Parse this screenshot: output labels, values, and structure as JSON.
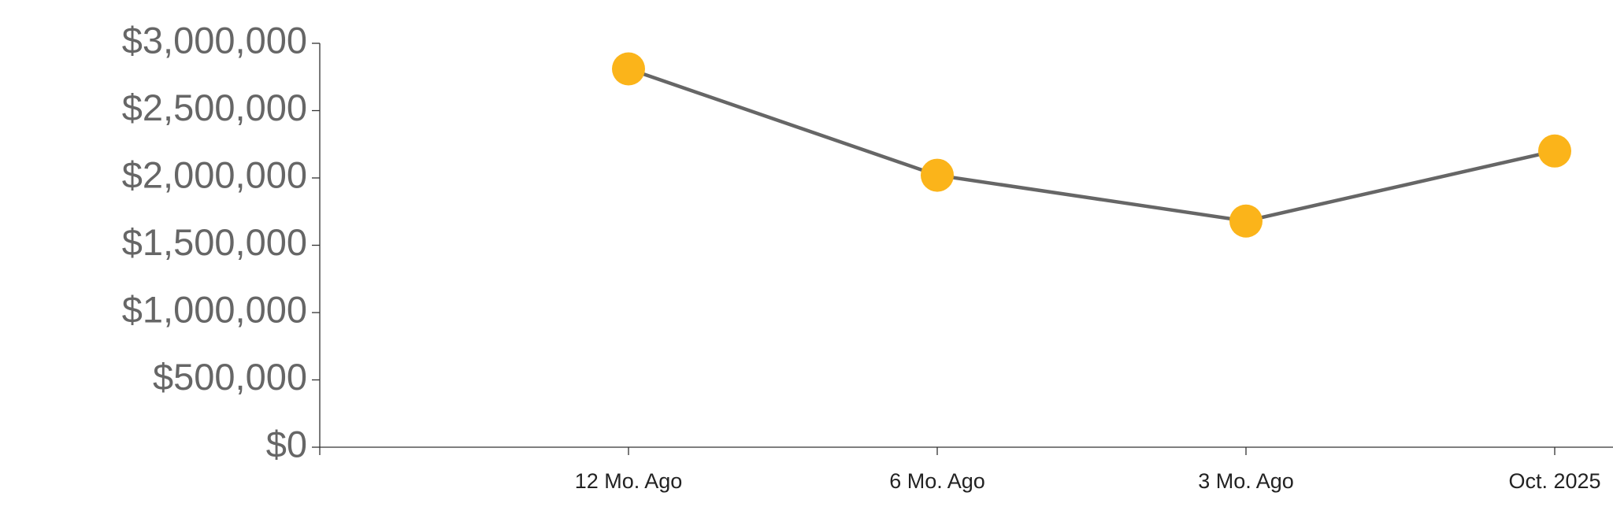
{
  "chart_data": {
    "type": "line",
    "categories": [
      null,
      "12 Mo. Ago",
      "6 Mo. Ago",
      "3 Mo. Ago",
      "Oct. 2025"
    ],
    "series": [
      {
        "color": "#fbb41a",
        "line_color": "#666666",
        "values": [
          null,
          2810000,
          2020000,
          1680000,
          2200000
        ]
      }
    ],
    "ylim": [
      0,
      3000000
    ],
    "yticks": [
      {
        "value": 0,
        "label": "$0"
      },
      {
        "value": 500000,
        "label": "$500,000"
      },
      {
        "value": 1000000,
        "label": "$1,000,000"
      },
      {
        "value": 1500000,
        "label": "$1,500,000"
      },
      {
        "value": 2000000,
        "label": "$2,000,000"
      },
      {
        "value": 2500000,
        "label": "$2,500,000"
      },
      {
        "value": 3000000,
        "label": "$3,000,000"
      }
    ],
    "grid": false
  }
}
